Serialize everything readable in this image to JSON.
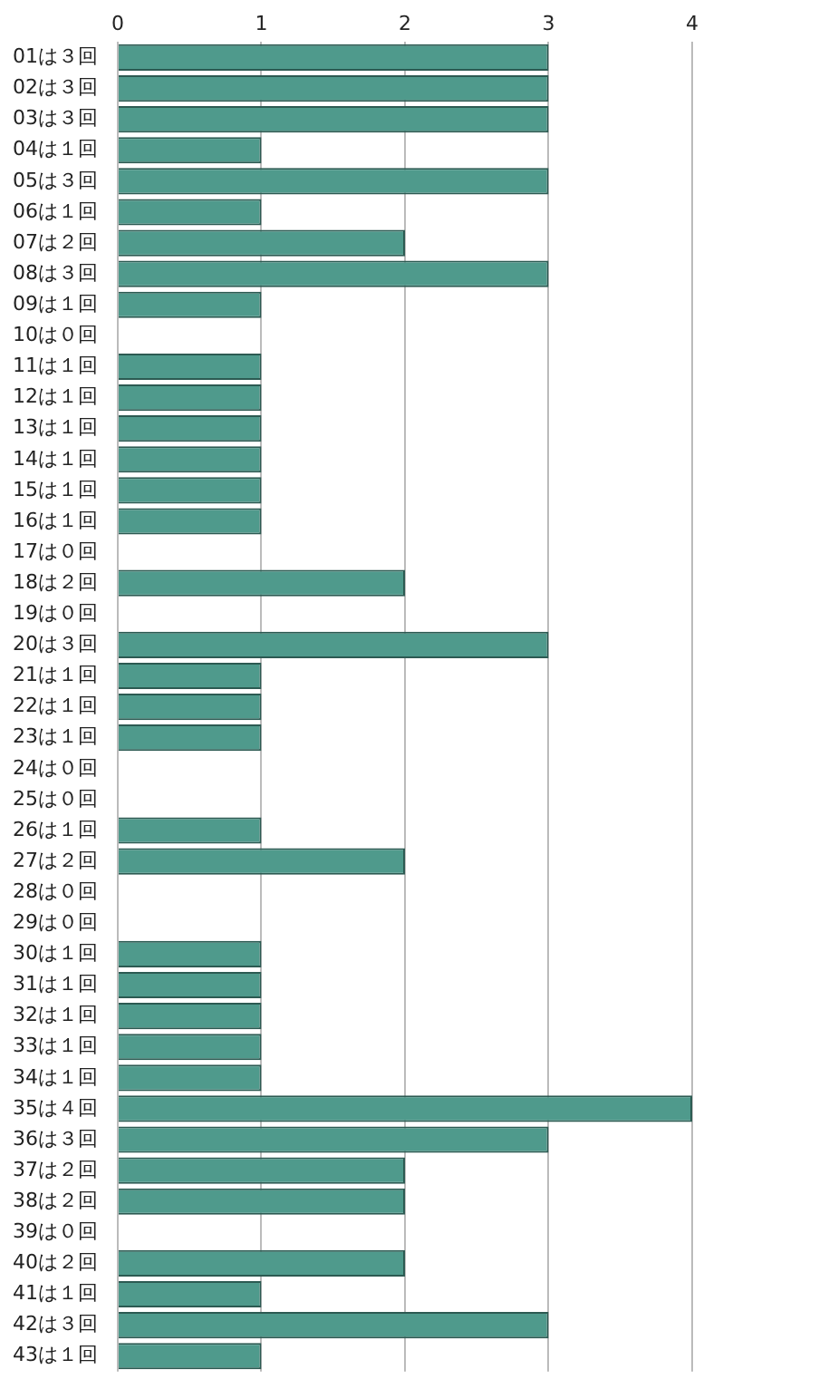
{
  "chart_data": {
    "type": "bar",
    "orientation": "horizontal",
    "categories": [
      "01は３回",
      "02は３回",
      "03は３回",
      "04は１回",
      "05は３回",
      "06は１回",
      "07は２回",
      "08は３回",
      "09は１回",
      "10は０回",
      "11は１回",
      "12は１回",
      "13は１回",
      "14は１回",
      "15は１回",
      "16は１回",
      "17は０回",
      "18は２回",
      "19は０回",
      "20は３回",
      "21は１回",
      "22は１回",
      "23は１回",
      "24は０回",
      "25は０回",
      "26は１回",
      "27は２回",
      "28は０回",
      "29は０回",
      "30は１回",
      "31は１回",
      "32は１回",
      "33は１回",
      "34は１回",
      "35は４回",
      "36は３回",
      "37は２回",
      "38は２回",
      "39は０回",
      "40は２回",
      "41は１回",
      "42は３回",
      "43は１回"
    ],
    "values": [
      3,
      3,
      3,
      1,
      3,
      1,
      2,
      3,
      1,
      0,
      1,
      1,
      1,
      1,
      1,
      1,
      0,
      2,
      0,
      3,
      1,
      1,
      1,
      0,
      0,
      1,
      2,
      0,
      0,
      1,
      1,
      1,
      1,
      1,
      4,
      3,
      2,
      2,
      0,
      2,
      1,
      3,
      1
    ],
    "color": "#4f9a8c",
    "xlim": [
      0,
      4
    ],
    "xticks": [
      0,
      1,
      2,
      3,
      4
    ],
    "grid": "x"
  }
}
